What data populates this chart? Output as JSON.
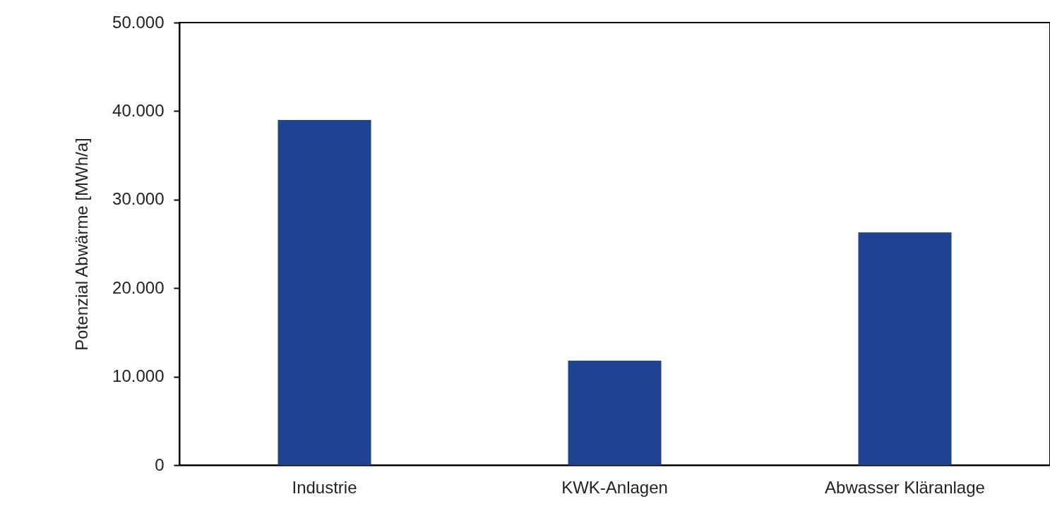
{
  "chart_data": {
    "type": "bar",
    "ylabel": "Potenzial Abwärme [MWh/a]",
    "categories": [
      "Industrie",
      "KWK-Anlagen",
      "Abwasser Kläranlage"
    ],
    "values": [
      39000,
      11800,
      26300
    ],
    "color": "#1f4391",
    "ylim": [
      0,
      50000
    ],
    "yticks": [
      {
        "value": 0,
        "label": "0"
      },
      {
        "value": 10000,
        "label": "10.000"
      },
      {
        "value": 20000,
        "label": "20.000"
      },
      {
        "value": 30000,
        "label": "30.000"
      },
      {
        "value": 40000,
        "label": "40.000"
      },
      {
        "value": 50000,
        "label": "50.000"
      }
    ],
    "grid": false
  }
}
